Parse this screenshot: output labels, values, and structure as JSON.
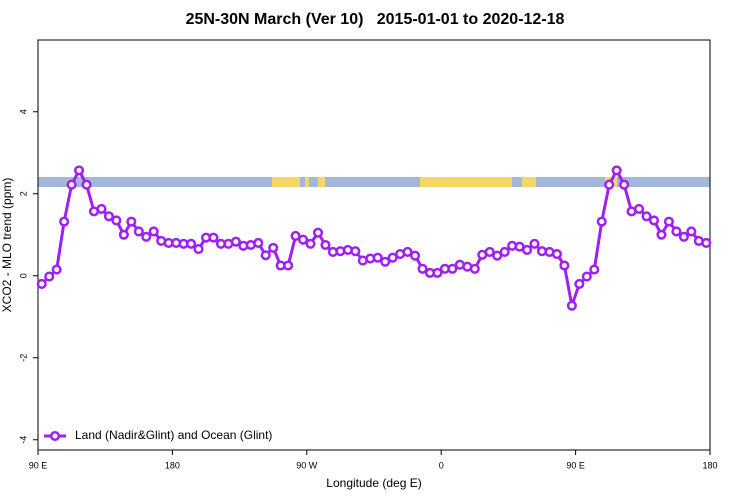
{
  "chart_data": {
    "type": "line",
    "title": "25N-30N March (Ver 10)   2015-01-01 to 2020-12-18",
    "x_label": "Longitude (deg E)",
    "y_label": "XCO2 - MLO trend (ppm)",
    "x": [
      92.5,
      97.5,
      102.5,
      107.5,
      112.5,
      117.5,
      122.5,
      127.5,
      132.5,
      137.5,
      142.5,
      147.5,
      152.5,
      157.5,
      162.5,
      167.5,
      172.5,
      177.5,
      182.5,
      187.5,
      192.5,
      197.5,
      202.5,
      207.5,
      212.5,
      217.5,
      222.5,
      227.5,
      232.5,
      237.5,
      242.5,
      247.5,
      252.5,
      257.5,
      262.5,
      267.5,
      272.5,
      277.5,
      282.5,
      287.5,
      292.5,
      297.5,
      302.5,
      307.5,
      312.5,
      317.5,
      322.5,
      327.5,
      332.5,
      337.5,
      342.5,
      347.5,
      352.5,
      357.5,
      362.5,
      367.5,
      372.5,
      377.5,
      382.5,
      387.5,
      392.5,
      397.5,
      402.5,
      407.5,
      412.5,
      417.5,
      422.5,
      427.5,
      432.5,
      437.5,
      442.5,
      447.5,
      452.5,
      457.5,
      462.5,
      467.5,
      472.5,
      477.5,
      482.5,
      487.5,
      492.5,
      497.5,
      502.5,
      507.5,
      512.5,
      517.5,
      522.5,
      527.5,
      532.5,
      537.5
    ],
    "series": [
      {
        "name": "Land (Nadir&Glint) and Ocean (Glint)",
        "color": "#a020f0",
        "values": [
          -0.2,
          -0.02,
          0.15,
          1.32,
          2.22,
          2.57,
          2.22,
          1.57,
          1.63,
          1.45,
          1.35,
          1.0,
          1.32,
          1.08,
          0.95,
          1.08,
          0.85,
          0.8,
          0.8,
          0.78,
          0.78,
          0.65,
          0.93,
          0.93,
          0.78,
          0.78,
          0.83,
          0.73,
          0.75,
          0.8,
          0.5,
          0.68,
          0.25,
          0.25,
          0.97,
          0.88,
          0.78,
          1.05,
          0.75,
          0.58,
          0.6,
          0.63,
          0.6,
          0.37,
          0.42,
          0.44,
          0.34,
          0.44,
          0.53,
          0.58,
          0.49,
          0.17,
          0.07,
          0.07,
          0.17,
          0.17,
          0.27,
          0.22,
          0.17,
          0.51,
          0.58,
          0.49,
          0.58,
          0.73,
          0.71,
          0.63,
          0.78,
          0.6,
          0.58,
          0.53,
          0.25,
          -0.73,
          -0.2,
          -0.02,
          0.15,
          1.32,
          2.22,
          2.57,
          2.22,
          1.57,
          1.63,
          1.45,
          1.35,
          1.0,
          1.32,
          1.08,
          0.95,
          1.08,
          0.85,
          0.8
        ]
      }
    ],
    "xlim": [
      90,
      540
    ],
    "ylim": [
      -4.25,
      5.75
    ],
    "xticks": [
      {
        "value": 90,
        "label": "90 E"
      },
      180,
      {
        "value": 270,
        "label": "90 W"
      },
      {
        "value": 360,
        "label": "0"
      },
      {
        "value": 450,
        "label": "90 E"
      },
      {
        "value": 540,
        "label": "180"
      }
    ],
    "yticks": [
      -4,
      -2,
      0,
      2,
      4
    ],
    "legend": "bottomleft"
  }
}
